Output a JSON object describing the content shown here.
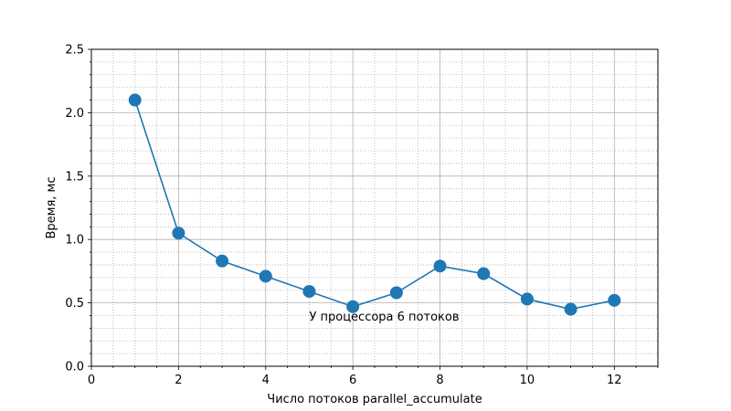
{
  "chart_data": {
    "type": "line",
    "title": "",
    "xlabel": "Число потоков parallel_accumulate",
    "ylabel": "Время, мс",
    "xlim": [
      0,
      13
    ],
    "ylim": [
      0,
      2.5
    ],
    "x_ticks": [
      0,
      2,
      4,
      6,
      8,
      10,
      12
    ],
    "y_ticks": [
      0.0,
      0.5,
      1.0,
      1.5,
      2.0,
      2.5
    ],
    "x_tick_labels": [
      "0",
      "2",
      "4",
      "6",
      "8",
      "10",
      "12"
    ],
    "y_tick_labels": [
      "0.0",
      "0.5",
      "1.0",
      "1.5",
      "2.0",
      "2.5"
    ],
    "x_minor_step": 0.5,
    "y_minor_step": 0.1,
    "grid": true,
    "minor_grid": true,
    "line_color": "#1f77b4",
    "series": [
      {
        "x": [
          1,
          2,
          3,
          4,
          5,
          6,
          7,
          8,
          9,
          10,
          11,
          12
        ],
        "values": [
          2.1,
          1.05,
          0.83,
          0.71,
          0.59,
          0.47,
          0.58,
          0.79,
          0.73,
          0.53,
          0.45,
          0.52
        ]
      }
    ],
    "annotations": [
      {
        "text": "У процессора 6 потоков",
        "x": 5.0,
        "y": 0.36
      }
    ]
  }
}
